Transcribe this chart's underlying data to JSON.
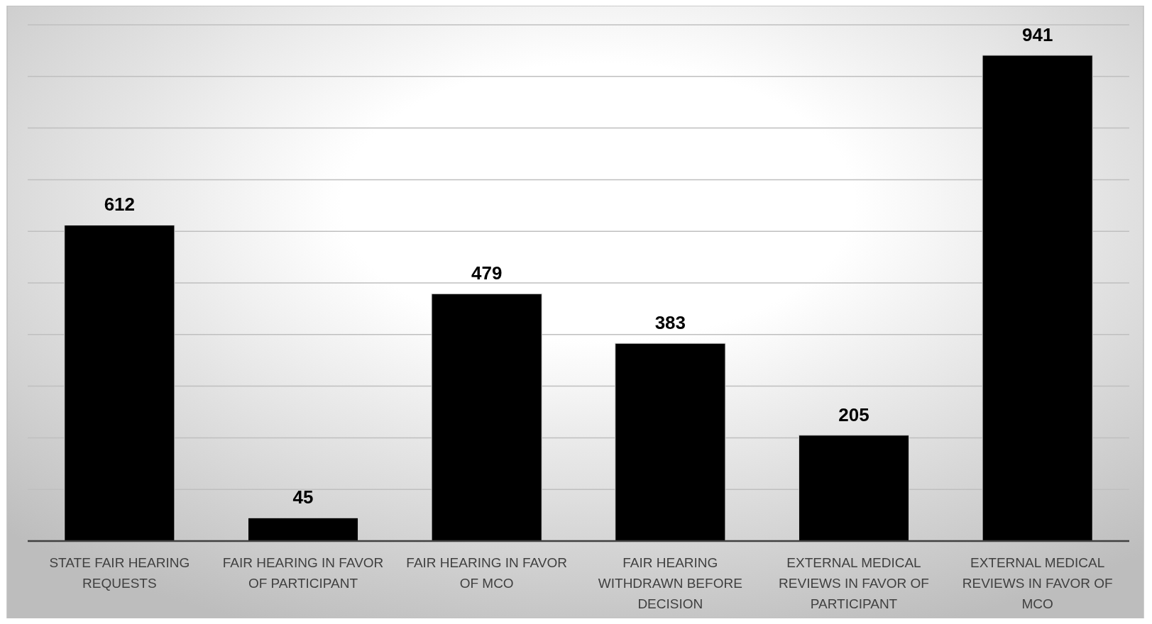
{
  "chart_data": {
    "type": "bar",
    "categories": [
      "STATE FAIR HEARING REQUESTS",
      "FAIR HEARING IN FAVOR OF PARTICIPANT",
      "FAIR HEARING IN FAVOR OF MCO",
      "FAIR HEARING WITHDRAWN BEFORE DECISION",
      "EXTERNAL MEDICAL REVIEWS IN FAVOR OF PARTICIPANT",
      "EXTERNAL MEDICAL REVIEWS IN FAVOR OF MCO"
    ],
    "values": [
      612,
      45,
      479,
      383,
      205,
      941
    ],
    "color": "#000000",
    "ylim": [
      0,
      1000
    ],
    "yticks": [
      {
        "value": 0,
        "label": null
      },
      {
        "value": 100,
        "label": null
      },
      {
        "value": 200,
        "label": null
      },
      {
        "value": 300,
        "label": null
      },
      {
        "value": 400,
        "label": null
      },
      {
        "value": 500,
        "label": null
      },
      {
        "value": 600,
        "label": null
      },
      {
        "value": 700,
        "label": null
      },
      {
        "value": 800,
        "label": null
      },
      {
        "value": 900,
        "label": null
      },
      {
        "value": 1000,
        "label": null
      }
    ],
    "grid": "y",
    "tick_labels": "x",
    "data_labels": true
  }
}
